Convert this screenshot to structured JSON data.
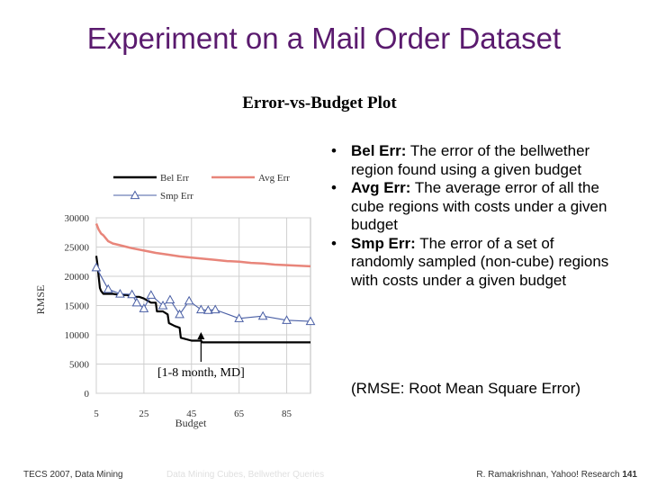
{
  "slide": {
    "title": "Experiment on a Mail Order Dataset",
    "footer_left": "TECS 2007, Data Mining",
    "footer_faint": "Data Mining Cubes, Bellwether Queries",
    "footer_right_author": "R. Ramakrishnan, Yahoo! Research",
    "footer_right_page": "141"
  },
  "bullets": [
    {
      "term": "Bel Err:",
      "text": "The error of the bellwether region found using a given budget"
    },
    {
      "term": "Avg Err:",
      "text": "The average error of all the cube regions with costs under a given budget"
    },
    {
      "term": "Smp Err:",
      "text": "The error of a set of randomly sampled (non-cube) regions with costs under a given budget"
    }
  ],
  "rmse_note": "(RMSE: Root Mean Square Error)",
  "chart_data": {
    "type": "line",
    "title": "Error-vs-Budget Plot",
    "xlabel": "Budget",
    "ylabel": "RMSE",
    "xlim": [
      5,
      95
    ],
    "ylim": [
      0,
      30000
    ],
    "xticks": [
      5,
      25,
      45,
      65,
      85
    ],
    "yticks": [
      0,
      5000,
      10000,
      15000,
      20000,
      25000,
      30000
    ],
    "legend_position": "top",
    "annotation": "[1-8 month, MD]",
    "annotation_x": 49,
    "series": [
      {
        "name": "Bel Err",
        "color": "#000000",
        "marker": "none",
        "x": [
          5,
          5.5,
          6,
          6.5,
          7,
          8,
          9,
          10,
          12,
          15,
          18,
          20,
          23,
          25,
          28,
          30,
          30.5,
          33,
          35,
          35.5,
          38,
          40,
          40.5,
          45,
          49,
          49.5,
          55,
          60,
          70,
          80,
          90,
          95
        ],
        "y": [
          23500,
          22000,
          20000,
          18000,
          17500,
          17000,
          17000,
          17000,
          17000,
          16800,
          16800,
          16500,
          16500,
          16200,
          15500,
          15500,
          14000,
          14000,
          13500,
          12000,
          11500,
          11200,
          9500,
          9000,
          9000,
          8700,
          8700,
          8700,
          8700,
          8700,
          8700,
          8700
        ]
      },
      {
        "name": "Avg Err",
        "color": "#e8857a",
        "marker": "none",
        "x": [
          5,
          6,
          7,
          8,
          9,
          10,
          12,
          15,
          18,
          20,
          25,
          30,
          35,
          40,
          45,
          50,
          55,
          60,
          65,
          70,
          75,
          80,
          85,
          90,
          95
        ],
        "y": [
          29000,
          28000,
          27300,
          27000,
          26500,
          26000,
          25600,
          25300,
          25000,
          24800,
          24400,
          24000,
          23700,
          23400,
          23200,
          23000,
          22800,
          22600,
          22500,
          22300,
          22200,
          22000,
          21900,
          21800,
          21700
        ]
      },
      {
        "name": "Smp Err",
        "color": "#4a5fa5",
        "marker": "triangle",
        "x": [
          5,
          10,
          15,
          20,
          22,
          25,
          28,
          33,
          36,
          40,
          44,
          49,
          52,
          55,
          65,
          75,
          85,
          95
        ],
        "y": [
          21500,
          17800,
          17000,
          16900,
          15500,
          14500,
          16800,
          15000,
          16000,
          13500,
          15800,
          14300,
          14200,
          14300,
          12800,
          13200,
          12500,
          12300
        ]
      }
    ]
  }
}
